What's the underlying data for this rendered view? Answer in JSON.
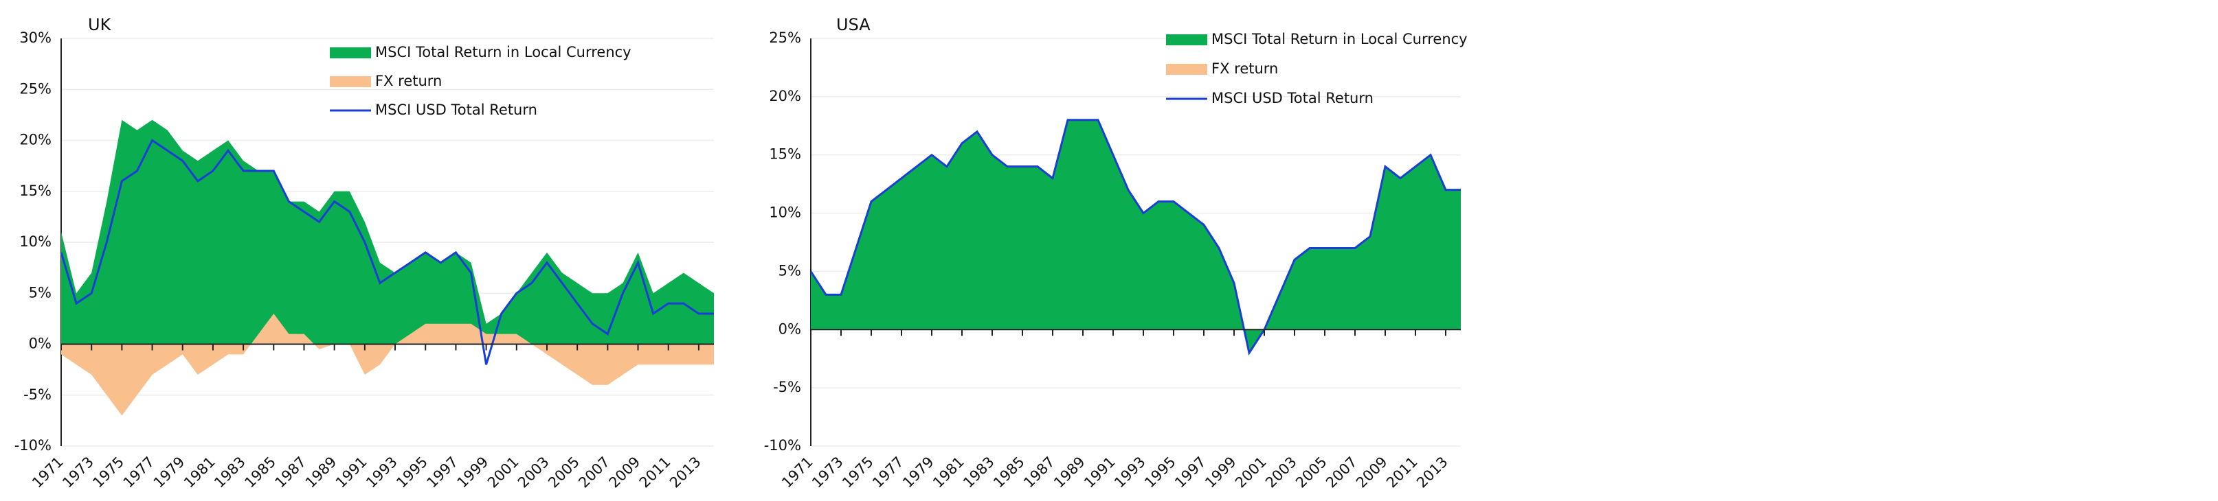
{
  "chart_data": [
    {
      "type": "area",
      "title": "UK",
      "legend": "upper center",
      "grid": true,
      "x": [
        1971,
        1972,
        1973,
        1974,
        1975,
        1976,
        1977,
        1978,
        1979,
        1980,
        1981,
        1982,
        1983,
        1984,
        1985,
        1986,
        1987,
        1988,
        1989,
        1990,
        1991,
        1992,
        1993,
        1994,
        1995,
        1996,
        1997,
        1998,
        1999,
        2000,
        2001,
        2002,
        2003,
        2004,
        2005,
        2006,
        2007,
        2008,
        2009,
        2010,
        2011,
        2012,
        2013,
        2014
      ],
      "xlim": [
        1971,
        2014
      ],
      "xticks": [
        1971,
        1973,
        1975,
        1977,
        1979,
        1981,
        1983,
        1985,
        1987,
        1989,
        1991,
        1993,
        1995,
        1997,
        1999,
        2001,
        2003,
        2005,
        2007,
        2009,
        2011,
        2013
      ],
      "ylim": [
        -10,
        30
      ],
      "yticks": [
        {
          "value": -10,
          "label": "-10%"
        },
        {
          "value": -5,
          "label": "-5%"
        },
        {
          "value": 0,
          "label": "0%"
        },
        {
          "value": 5,
          "label": "5%"
        },
        {
          "value": 10,
          "label": "10%"
        },
        {
          "value": 15,
          "label": "15%"
        },
        {
          "value": 20,
          "label": "20%"
        },
        {
          "value": 25,
          "label": "25%"
        },
        {
          "value": 30,
          "label": "30%"
        }
      ],
      "series": [
        {
          "name": "MSCI Total Return in Local Currency",
          "color": "#0aad4f",
          "kind": "area",
          "values": [
            11,
            5,
            7,
            14,
            22,
            21,
            22,
            21,
            19,
            18,
            19,
            20,
            18,
            17,
            17,
            14,
            14,
            13,
            15,
            15,
            12,
            8,
            7,
            8,
            9,
            8,
            9,
            8,
            2,
            3,
            5,
            7,
            9,
            7,
            6,
            5,
            5,
            6,
            9,
            5,
            6,
            7,
            6,
            5
          ]
        },
        {
          "name": "FX return",
          "color": "#f9c08e",
          "kind": "area",
          "values": [
            -1,
            -2,
            -3,
            -5,
            -7,
            -5,
            -3,
            -2,
            -1,
            -3,
            -2,
            -1,
            -1,
            1,
            3,
            1,
            1,
            -0.5,
            0,
            0,
            -3,
            -2,
            0,
            1,
            2,
            2,
            2,
            2,
            1,
            1,
            1,
            0,
            -1,
            -2,
            -3,
            -4,
            -4,
            -3,
            -2,
            -2,
            -2,
            -2,
            -2,
            -2
          ]
        },
        {
          "name": "MSCI USD Total Return",
          "color": "#1a3fd6",
          "kind": "line",
          "values": [
            9,
            4,
            5,
            10,
            16,
            17,
            20,
            19,
            18,
            16,
            17,
            19,
            17,
            17,
            17,
            14,
            13,
            12,
            14,
            13,
            10,
            6,
            7,
            8,
            9,
            8,
            9,
            7,
            -2,
            3,
            5,
            6,
            8,
            6,
            4,
            2,
            1,
            5,
            8,
            3,
            4,
            4,
            3,
            3
          ]
        }
      ]
    },
    {
      "type": "area",
      "title": "USA",
      "legend": "upper center",
      "grid": true,
      "x": [
        1971,
        1972,
        1973,
        1974,
        1975,
        1976,
        1977,
        1978,
        1979,
        1980,
        1981,
        1982,
        1983,
        1984,
        1985,
        1986,
        1987,
        1988,
        1989,
        1990,
        1991,
        1992,
        1993,
        1994,
        1995,
        1996,
        1997,
        1998,
        1999,
        2000,
        2001,
        2002,
        2003,
        2004,
        2005,
        2006,
        2007,
        2008,
        2009,
        2010,
        2011,
        2012,
        2013,
        2014
      ],
      "xlim": [
        1971,
        2014
      ],
      "xticks": [
        1971,
        1973,
        1975,
        1977,
        1979,
        1981,
        1983,
        1985,
        1987,
        1989,
        1991,
        1993,
        1995,
        1997,
        1999,
        2001,
        2003,
        2005,
        2007,
        2009,
        2011,
        2013
      ],
      "ylim": [
        -10,
        25
      ],
      "yticks": [
        {
          "value": -10,
          "label": "-10%"
        },
        {
          "value": -5,
          "label": "-5%"
        },
        {
          "value": 0,
          "label": "0%"
        },
        {
          "value": 5,
          "label": "5%"
        },
        {
          "value": 10,
          "label": "10%"
        },
        {
          "value": 15,
          "label": "15%"
        },
        {
          "value": 20,
          "label": "20%"
        },
        {
          "value": 25,
          "label": "25%"
        }
      ],
      "series": [
        {
          "name": "MSCI Total Return in Local Currency",
          "color": "#0aad4f",
          "kind": "area",
          "values": [
            5,
            3,
            3,
            7,
            11,
            12,
            13,
            14,
            15,
            14,
            16,
            17,
            15,
            14,
            14,
            14,
            13,
            18,
            18,
            18,
            15,
            12,
            10,
            11,
            11,
            10,
            9,
            7,
            4,
            -2,
            0,
            3,
            6,
            7,
            7,
            7,
            7,
            8,
            14,
            13,
            14,
            15,
            12,
            12
          ]
        },
        {
          "name": "FX return",
          "color": "#f9c08e",
          "kind": "area",
          "values": [
            0,
            0,
            0,
            0,
            0,
            0,
            0,
            0,
            0,
            0,
            0,
            0,
            0,
            0,
            0,
            0,
            0,
            0,
            0,
            0,
            0,
            0,
            0,
            0,
            0,
            0,
            0,
            0,
            0,
            0,
            0,
            0,
            0,
            0,
            0,
            0,
            0,
            0,
            0,
            0,
            0,
            0,
            0,
            0
          ]
        },
        {
          "name": "MSCI USD Total Return",
          "color": "#1a3fd6",
          "kind": "line",
          "values": [
            5,
            3,
            3,
            7,
            11,
            12,
            13,
            14,
            15,
            14,
            16,
            17,
            15,
            14,
            14,
            14,
            13,
            18,
            18,
            18,
            15,
            12,
            10,
            11,
            11,
            10,
            9,
            7,
            4,
            -2,
            0,
            3,
            6,
            7,
            7,
            7,
            7,
            8,
            14,
            13,
            14,
            15,
            12,
            12
          ]
        }
      ]
    }
  ]
}
